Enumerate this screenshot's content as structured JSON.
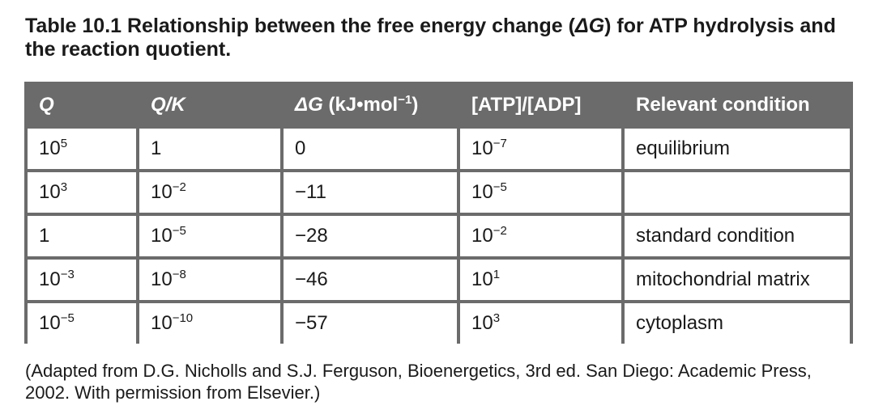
{
  "title": {
    "part1": "Table 10.1 Relationship between the free energy change (",
    "delta": "ΔG",
    "part2": ") for ATP hydrolysis and the reaction quotient."
  },
  "table": {
    "headers": [
      {
        "main": "Q",
        "italic": true
      },
      {
        "main": "Q/K",
        "italic": true
      },
      {
        "main": "ΔG",
        "suffix": " (kJ•mol",
        "sup": "−1",
        "tail": ")"
      },
      {
        "main": "[ATP]/[ADP]"
      },
      {
        "main": "Relevant condition"
      }
    ],
    "rows": [
      [
        {
          "b": "10",
          "e": "5"
        },
        {
          "b": "1",
          "e": ""
        },
        {
          "b": "0",
          "e": ""
        },
        {
          "b": "10",
          "e": "−7"
        },
        {
          "b": "equilibrium",
          "e": ""
        }
      ],
      [
        {
          "b": "10",
          "e": "3"
        },
        {
          "b": "10",
          "e": "−2"
        },
        {
          "b": "−11",
          "e": ""
        },
        {
          "b": "10",
          "e": "−5"
        },
        {
          "b": "",
          "e": ""
        }
      ],
      [
        {
          "b": "1",
          "e": ""
        },
        {
          "b": "10",
          "e": "−5"
        },
        {
          "b": "−28",
          "e": ""
        },
        {
          "b": "10",
          "e": "−2"
        },
        {
          "b": "standard condition",
          "e": ""
        }
      ],
      [
        {
          "b": "10",
          "e": "−3"
        },
        {
          "b": "10",
          "e": "−8"
        },
        {
          "b": "−46",
          "e": ""
        },
        {
          "b": "10",
          "e": "1"
        },
        {
          "b": "mitochondrial matrix",
          "e": ""
        }
      ],
      [
        {
          "b": "10",
          "e": "−5"
        },
        {
          "b": "10",
          "e": "−10"
        },
        {
          "b": "−57",
          "e": ""
        },
        {
          "b": "10",
          "e": "3"
        },
        {
          "b": "cytoplasm",
          "e": ""
        }
      ]
    ]
  },
  "note": "(Adapted from D.G. Nicholls and S.J. Ferguson, Bioenergetics, 3rd ed. San Diego: Academic Press, 2002. With permission from Elsevier.)"
}
